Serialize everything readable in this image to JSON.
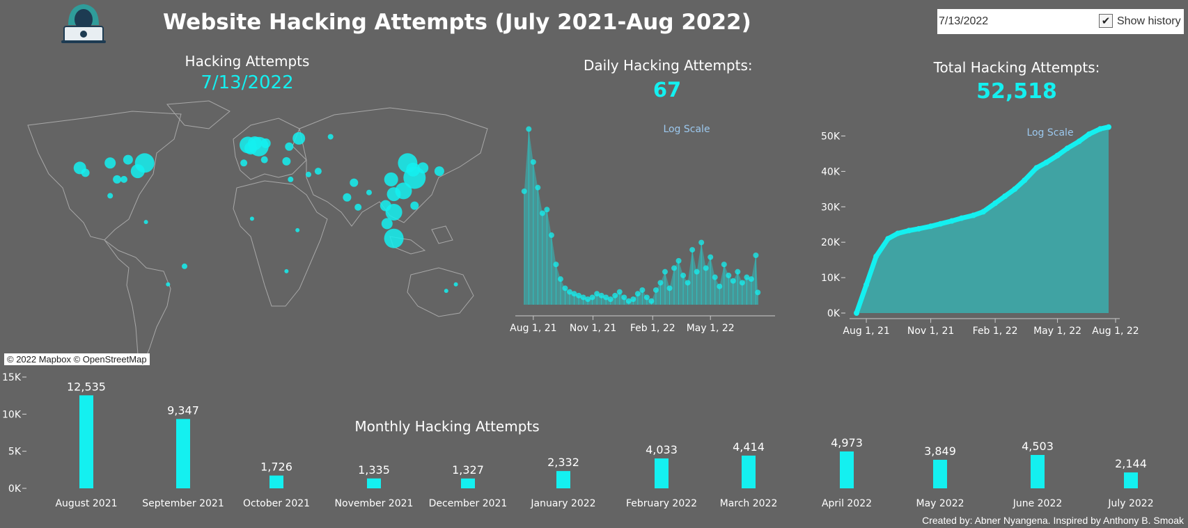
{
  "header": {
    "title": "Website Hacking Attempts (July 2021-Aug 2022)",
    "logo_icon": "hacker-laptop-icon"
  },
  "filter": {
    "date_value": "7/13/2022",
    "show_history_label": "Show history",
    "show_history_checked": true
  },
  "map_panel": {
    "label": "Hacking Attempts",
    "date": "7/13/2022",
    "attribution": "© 2022 Mapbox © OpenStreetMap",
    "accent": "#14f0f0"
  },
  "daily_panel": {
    "label": "Daily Hacking Attempts:",
    "value": "67"
  },
  "total_panel": {
    "label": "Total Hacking Attempts:",
    "value": "52,518"
  },
  "monthly_title": "Monthly Hacking Attempts",
  "credit": "Created by: Abner Nyangena. Inspired by Anthony B. Smoak",
  "chart_data": [
    {
      "type": "line",
      "name": "daily",
      "annotation": "Log Scale",
      "x_ticks": [
        "Aug 1, 21",
        "Nov 1, 21",
        "Feb 1, 22",
        "May 1, 22"
      ],
      "y_ticks": [
        "0",
        "200",
        "400",
        "600",
        "800",
        "1000"
      ],
      "ylim": [
        0,
        1000
      ],
      "x": [
        "2021-07-18",
        "2021-07-25",
        "2021-08-01",
        "2021-08-08",
        "2021-08-15",
        "2021-08-22",
        "2021-08-29",
        "2021-09-05",
        "2021-09-12",
        "2021-09-19",
        "2021-09-26",
        "2021-10-03",
        "2021-10-10",
        "2021-10-17",
        "2021-10-24",
        "2021-10-31",
        "2021-11-07",
        "2021-11-14",
        "2021-11-21",
        "2021-11-28",
        "2021-12-05",
        "2021-12-12",
        "2021-12-19",
        "2021-12-26",
        "2022-01-02",
        "2022-01-09",
        "2022-01-16",
        "2022-01-23",
        "2022-01-30",
        "2022-02-06",
        "2022-02-13",
        "2022-02-20",
        "2022-02-27",
        "2022-03-06",
        "2022-03-13",
        "2022-03-20",
        "2022-03-27",
        "2022-04-03",
        "2022-04-10",
        "2022-04-17",
        "2022-04-24",
        "2022-05-01",
        "2022-05-08",
        "2022-05-15",
        "2022-05-22",
        "2022-05-29",
        "2022-06-05",
        "2022-06-12",
        "2022-06-19",
        "2022-06-26",
        "2022-07-03",
        "2022-07-10",
        "2022-07-13"
      ],
      "values": [
        620,
        960,
        780,
        640,
        500,
        520,
        380,
        220,
        140,
        90,
        70,
        60,
        50,
        40,
        30,
        40,
        60,
        50,
        40,
        30,
        50,
        70,
        40,
        20,
        30,
        60,
        80,
        40,
        20,
        80,
        120,
        180,
        90,
        200,
        240,
        160,
        120,
        300,
        180,
        340,
        200,
        260,
        150,
        100,
        220,
        160,
        130,
        180,
        120,
        150,
        140,
        270,
        67
      ]
    },
    {
      "type": "area",
      "name": "cumulative",
      "annotation": "Log Scale",
      "x_ticks": [
        "Aug 1, 21",
        "Nov 1, 21",
        "Feb 1, 22",
        "May 1, 22",
        "Aug 1, 22"
      ],
      "y_ticks": [
        "0K",
        "10K",
        "20K",
        "30K",
        "40K",
        "50K"
      ],
      "ylim": [
        0,
        55000
      ],
      "x": [
        "2021-07-18",
        "2021-08-01",
        "2021-08-15",
        "2021-09-01",
        "2021-09-15",
        "2021-10-01",
        "2021-10-15",
        "2021-11-01",
        "2021-11-15",
        "2021-12-01",
        "2021-12-15",
        "2022-01-01",
        "2022-01-15",
        "2022-02-01",
        "2022-02-15",
        "2022-03-01",
        "2022-03-15",
        "2022-04-01",
        "2022-04-15",
        "2022-05-01",
        "2022-05-15",
        "2022-06-01",
        "2022-06-15",
        "2022-07-01",
        "2022-07-13"
      ],
      "values": [
        0,
        8000,
        16000,
        21000,
        22500,
        23300,
        23800,
        24500,
        25200,
        26000,
        26800,
        27600,
        28600,
        31000,
        33000,
        35000,
        37500,
        41000,
        42500,
        44500,
        46500,
        48500,
        50500,
        52000,
        52518
      ]
    },
    {
      "type": "bar",
      "name": "monthly",
      "title": "Monthly Hacking Attempts",
      "categories": [
        "August 2021",
        "September 2021",
        "October 2021",
        "November 2021",
        "December 2021",
        "January 2022",
        "February 2022",
        "March 2022",
        "April 2022",
        "May 2022",
        "June 2022",
        "July 2022"
      ],
      "values": [
        12535,
        9347,
        1726,
        1335,
        1327,
        2332,
        4033,
        4414,
        4973,
        3849,
        4503,
        2144
      ],
      "labels": [
        "12,535",
        "9,347",
        "1,726",
        "1,335",
        "1,327",
        "2,332",
        "4,033",
        "4,414",
        "4,973",
        "3,849",
        "4,503",
        "2,144"
      ],
      "y_ticks": [
        "0K",
        "5K",
        "10K",
        "15K"
      ],
      "ylim": [
        0,
        15000
      ]
    }
  ],
  "map_points": [
    {
      "lon": -100,
      "lat": 40,
      "v": 8
    },
    {
      "lon": -75,
      "lat": 40,
      "v": 14
    },
    {
      "lon": -80,
      "lat": 35,
      "v": 10
    },
    {
      "lon": -122,
      "lat": 37,
      "v": 9
    },
    {
      "lon": -118,
      "lat": 34,
      "v": 6
    },
    {
      "lon": -90,
      "lat": 30,
      "v": 5
    },
    {
      "lon": -95,
      "lat": 30,
      "v": 6
    },
    {
      "lon": -87,
      "lat": 42,
      "v": 7
    },
    {
      "lon": -100,
      "lat": 20,
      "v": 4
    },
    {
      "lon": -46,
      "lat": -23,
      "v": 4
    },
    {
      "lon": -58,
      "lat": -34,
      "v": 3
    },
    {
      "lon": -74,
      "lat": 4,
      "v": 3
    },
    {
      "lon": 0,
      "lat": 51,
      "v": 12
    },
    {
      "lon": 2,
      "lat": 49,
      "v": 9
    },
    {
      "lon": 13,
      "lat": 52,
      "v": 7
    },
    {
      "lon": 37,
      "lat": 55,
      "v": 9
    },
    {
      "lon": 30,
      "lat": 50,
      "v": 6
    },
    {
      "lon": 5,
      "lat": 52,
      "v": 10
    },
    {
      "lon": 8,
      "lat": 50,
      "v": 14
    },
    {
      "lon": -3,
      "lat": 40,
      "v": 5
    },
    {
      "lon": 12,
      "lat": 42,
      "v": 5
    },
    {
      "lon": 28,
      "lat": 41,
      "v": 6
    },
    {
      "lon": 44,
      "lat": 33,
      "v": 4
    },
    {
      "lon": 51,
      "lat": 35,
      "v": 5
    },
    {
      "lon": 31,
      "lat": 30,
      "v": 4
    },
    {
      "lon": 77,
      "lat": 28,
      "v": 6
    },
    {
      "lon": 72,
      "lat": 19,
      "v": 6
    },
    {
      "lon": 80,
      "lat": 13,
      "v": 5
    },
    {
      "lon": 88,
      "lat": 22,
      "v": 4
    },
    {
      "lon": 104,
      "lat": 30,
      "v": 10
    },
    {
      "lon": 113,
      "lat": 23,
      "v": 12
    },
    {
      "lon": 116,
      "lat": 40,
      "v": 14
    },
    {
      "lon": 121,
      "lat": 31,
      "v": 16
    },
    {
      "lon": 120,
      "lat": 36,
      "v": 10
    },
    {
      "lon": 127,
      "lat": 37,
      "v": 8
    },
    {
      "lon": 139,
      "lat": 35,
      "v": 7
    },
    {
      "lon": 106,
      "lat": 21,
      "v": 10
    },
    {
      "lon": 106,
      "lat": 10,
      "v": 12
    },
    {
      "lon": 101,
      "lat": 3,
      "v": 8
    },
    {
      "lon": 106,
      "lat": -6,
      "v": 14
    },
    {
      "lon": 100,
      "lat": 14,
      "v": 8
    },
    {
      "lon": 121,
      "lat": 14,
      "v": 6
    },
    {
      "lon": 3,
      "lat": 6,
      "v": 3
    },
    {
      "lon": 36,
      "lat": -1,
      "v": 3
    },
    {
      "lon": 28,
      "lat": -26,
      "v": 3
    },
    {
      "lon": 151,
      "lat": -34,
      "v": 3
    },
    {
      "lon": 144,
      "lat": -38,
      "v": 3
    },
    {
      "lon": 60,
      "lat": 56,
      "v": 4
    }
  ]
}
